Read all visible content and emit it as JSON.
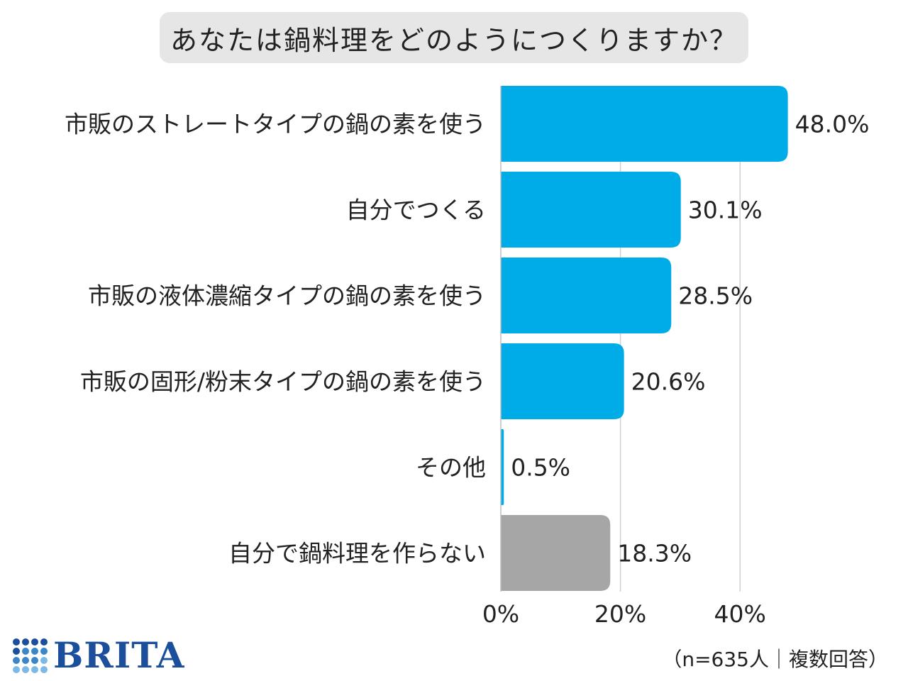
{
  "chart_data": {
    "type": "bar",
    "orientation": "horizontal",
    "title": "あなたは鍋料理をどのようにつくりますか？",
    "categories": [
      "市販のストレートタイプの鍋の素を使う",
      "自分でつくる",
      "市販の液体濃縮タイプの鍋の素を使う",
      "市販の固形/粉末タイプの鍋の素を使う",
      "その他",
      "自分で鍋料理を作らない"
    ],
    "values": [
      48.0,
      30.1,
      28.5,
      20.6,
      0.5,
      18.3
    ],
    "value_labels": [
      "48.0%",
      "30.1%",
      "28.5%",
      "20.6%",
      "0.5%",
      "18.3%"
    ],
    "bar_colors": [
      "#00ace8",
      "#00ace8",
      "#00ace8",
      "#00ace8",
      "#00ace8",
      "#a6a6a6"
    ],
    "xlim": [
      0,
      50
    ],
    "xticks": [
      0,
      20,
      40
    ],
    "xtick_labels": [
      "0%",
      "20%",
      "40%"
    ],
    "grid": true,
    "xlabel": "",
    "ylabel": ""
  },
  "note": "（n=635人｜複数回答）",
  "logo": {
    "text": "BRITA",
    "colors": [
      "#1b4f9c",
      "#3a86c8",
      "#7db9e6"
    ]
  }
}
